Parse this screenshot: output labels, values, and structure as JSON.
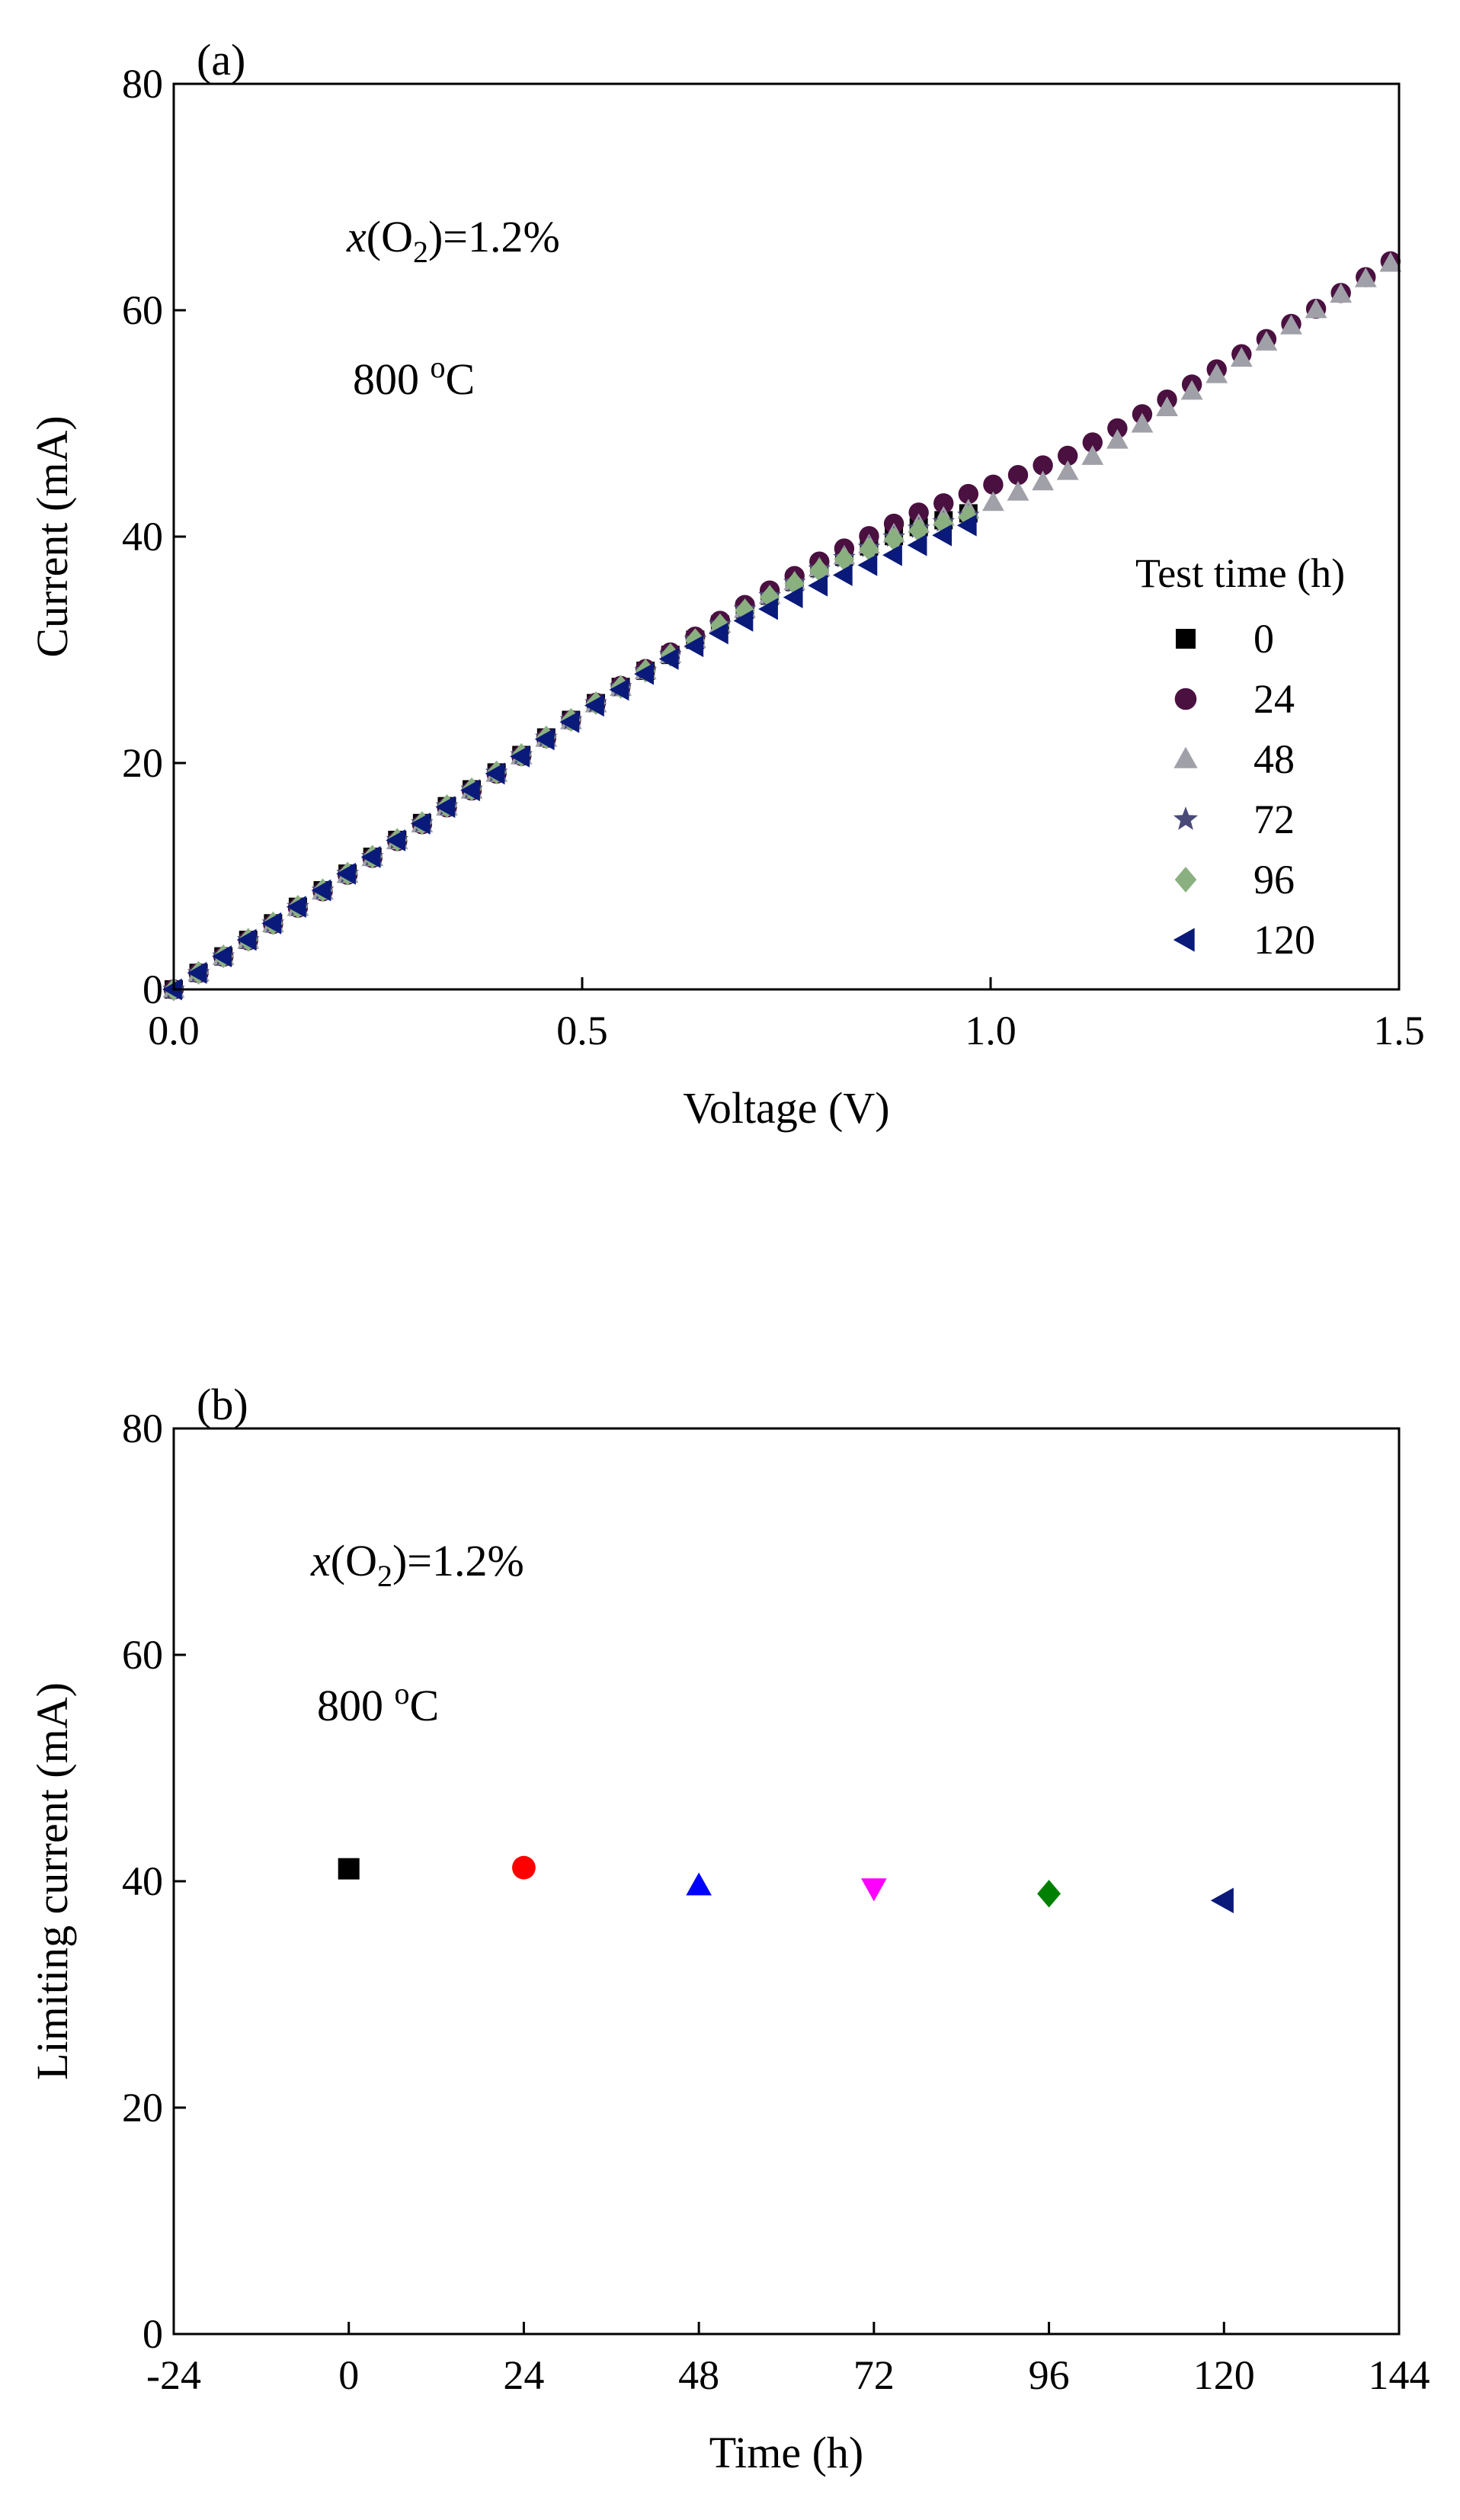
{
  "chart_data": [
    {
      "type": "scatter",
      "panel_label": "(a)",
      "xlabel": "Voltage (V)",
      "ylabel": "Current (mA)",
      "xlim": [
        0,
        1.5
      ],
      "ylim": [
        0,
        80
      ],
      "x_ticks": [
        "0.0",
        "0.5",
        "1.0",
        "1.5"
      ],
      "y_ticks": [
        "0",
        "20",
        "40",
        "60",
        "80"
      ],
      "annotations": {
        "oxygen_prefix": "x",
        "oxygen_open": "(O",
        "oxygen_sub": "2",
        "oxygen_close": ")=1.2%",
        "temperature_value": "800 ",
        "temperature_degree": "o",
        "temperature_unit": "C"
      },
      "legend": {
        "title": "Test time (h)",
        "placement": "right"
      },
      "grid": false,
      "series": [
        {
          "name": "0",
          "color": "#000000",
          "marker": "square",
          "x_max": 0.98,
          "points": [
            [
              0,
              0
            ],
            [
              0.2,
              9.6
            ],
            [
              0.4,
              19.4
            ],
            [
              0.5,
              24.5
            ],
            [
              0.6,
              29.2
            ],
            [
              0.7,
              33.6
            ],
            [
              0.8,
              37.6
            ],
            [
              0.9,
              40.6
            ],
            [
              0.98,
              42.2
            ]
          ]
        },
        {
          "name": "24",
          "color": "#4a1040",
          "marker": "circle",
          "x_max": 1.5,
          "points": [
            [
              0,
              0
            ],
            [
              0.2,
              9.5
            ],
            [
              0.4,
              19.3
            ],
            [
              0.5,
              24.5
            ],
            [
              0.6,
              29.4
            ],
            [
              0.7,
              34.0
            ],
            [
              0.8,
              38.2
            ],
            [
              0.9,
              41.8
            ],
            [
              1.0,
              44.5
            ],
            [
              1.1,
              47.3
            ],
            [
              1.2,
              51.4
            ],
            [
              1.3,
              55.8
            ],
            [
              1.4,
              60.2
            ],
            [
              1.5,
              64.8
            ]
          ]
        },
        {
          "name": "48",
          "color": "#a0a0a8",
          "marker": "triangle-up",
          "x_max": 1.5,
          "points": [
            [
              0,
              0
            ],
            [
              0.2,
              9.5
            ],
            [
              0.4,
              19.3
            ],
            [
              0.5,
              24.4
            ],
            [
              0.6,
              29.2
            ],
            [
              0.7,
              33.6
            ],
            [
              0.8,
              37.6
            ],
            [
              0.9,
              40.8
            ],
            [
              1.0,
              42.9
            ],
            [
              1.1,
              45.9
            ],
            [
              1.2,
              50.6
            ],
            [
              1.3,
              55.4
            ],
            [
              1.4,
              60.1
            ],
            [
              1.5,
              64.6
            ]
          ]
        },
        {
          "name": "72",
          "color": "#4a4a78",
          "marker": "star",
          "x_max": 0.98,
          "points": [
            [
              0,
              0
            ],
            [
              0.2,
              9.6
            ],
            [
              0.4,
              19.4
            ],
            [
              0.5,
              24.5
            ],
            [
              0.6,
              29.2
            ],
            [
              0.7,
              33.6
            ],
            [
              0.8,
              37.5
            ],
            [
              0.9,
              40.5
            ],
            [
              0.98,
              42.0
            ]
          ]
        },
        {
          "name": "96",
          "color": "#8ab080",
          "marker": "diamond",
          "x_max": 0.98,
          "points": [
            [
              0,
              0
            ],
            [
              0.2,
              9.6
            ],
            [
              0.4,
              19.4
            ],
            [
              0.5,
              24.5
            ],
            [
              0.6,
              29.2
            ],
            [
              0.7,
              33.5
            ],
            [
              0.8,
              37.4
            ],
            [
              0.9,
              40.3
            ],
            [
              0.98,
              41.9
            ]
          ]
        },
        {
          "name": "120",
          "color": "#0a1a7a",
          "marker": "triangle-left",
          "x_max": 0.98,
          "points": [
            [
              0,
              0
            ],
            [
              0.2,
              9.6
            ],
            [
              0.4,
              19.3
            ],
            [
              0.5,
              24.3
            ],
            [
              0.6,
              28.9
            ],
            [
              0.7,
              32.6
            ],
            [
              0.8,
              36.0
            ],
            [
              0.9,
              38.9
            ],
            [
              0.98,
              41.2
            ]
          ]
        }
      ]
    },
    {
      "type": "scatter",
      "panel_label": "(b)",
      "xlabel": "Time (h)",
      "ylabel": "Limiting current (mA)",
      "xlim": [
        -24,
        144
      ],
      "ylim": [
        0,
        80
      ],
      "x_ticks": [
        "-24",
        "0",
        "24",
        "48",
        "72",
        "96",
        "120",
        "144"
      ],
      "y_ticks": [
        "0",
        "20",
        "40",
        "60",
        "80"
      ],
      "annotations": {
        "oxygen_prefix": "x",
        "oxygen_open": "(O",
        "oxygen_sub": "2",
        "oxygen_close": ")=1.2%",
        "temperature_value": "800 ",
        "temperature_degree": "o",
        "temperature_unit": "C"
      },
      "grid": false,
      "points": [
        {
          "x": 0,
          "y": 41.1,
          "color": "#000000",
          "marker": "square"
        },
        {
          "x": 24,
          "y": 41.2,
          "color": "#ff0000",
          "marker": "circle"
        },
        {
          "x": 48,
          "y": 39.6,
          "color": "#0000ff",
          "marker": "triangle-up"
        },
        {
          "x": 72,
          "y": 39.4,
          "color": "#ff00ff",
          "marker": "triangle-down"
        },
        {
          "x": 96,
          "y": 38.9,
          "color": "#008000",
          "marker": "diamond"
        },
        {
          "x": 120,
          "y": 38.3,
          "color": "#0a1a7a",
          "marker": "triangle-left"
        }
      ]
    }
  ]
}
